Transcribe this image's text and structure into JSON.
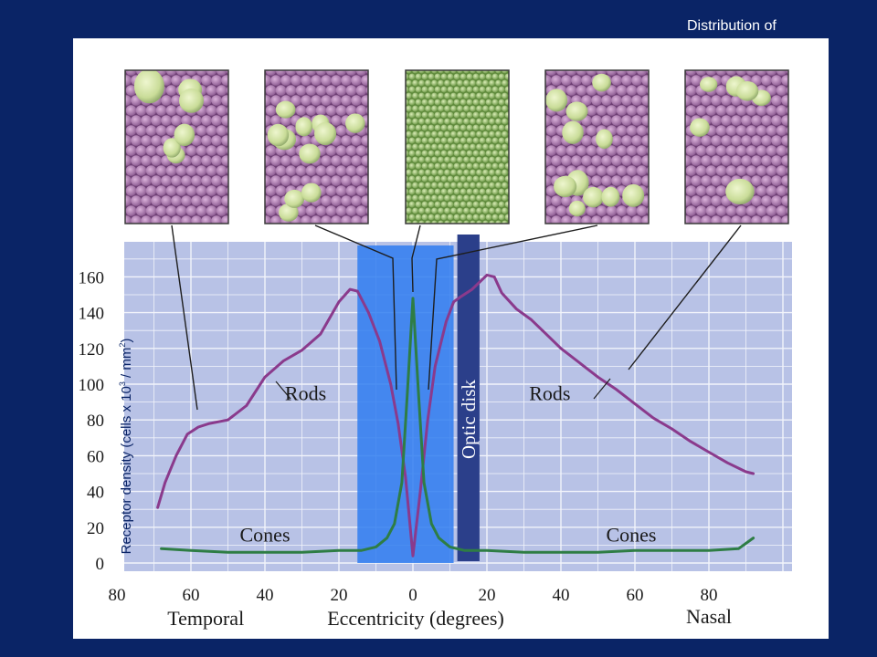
{
  "slide": {
    "title": "Distribution of",
    "ylabel_main": "Receptor density (cells x 10",
    "ylabel_exp1": "3",
    "ylabel_mid": " / mm",
    "ylabel_exp2": "2",
    "ylabel_end": ")"
  },
  "colors": {
    "background": "#0a2466",
    "plot_bg": "#b8c2e6",
    "grid": "#f2f4fb",
    "rods": "#8a3a8c",
    "cones": "#2e7d44",
    "fovea_band": "#2f7cf0",
    "optic_disk": "#2b3f8a"
  },
  "chart_data": {
    "type": "line",
    "xlabel": "Eccentricity (degrees)",
    "ylabel": "Receptor density (cells x 10³ / mm²)",
    "x_side_labels": {
      "left": "Temporal",
      "right": "Nasal"
    },
    "xticks": [
      80,
      60,
      40,
      20,
      0,
      20,
      40,
      60,
      80
    ],
    "xlim": [
      -80,
      100
    ],
    "yticks": [
      0,
      20,
      40,
      60,
      80,
      100,
      120,
      140,
      160
    ],
    "ylim": [
      0,
      170
    ],
    "grid": true,
    "optic_disk_label": "Optic disk",
    "optic_disk_range": [
      12,
      18
    ],
    "fovea_region": [
      -15,
      11
    ],
    "series": [
      {
        "name": "Rods",
        "label_pos": [
          -29,
          91
        ],
        "label_pos_2": [
          37,
          91
        ],
        "x": [
          -69,
          -67,
          -64,
          -61,
          -58,
          -55,
          -50,
          -45,
          -40,
          -35,
          -30,
          -25,
          -20,
          -17,
          -15,
          -12,
          -9,
          -6,
          -4,
          -2,
          0,
          2,
          4,
          6,
          9,
          11,
          13,
          16,
          20,
          22,
          24,
          28,
          32,
          36,
          40,
          45,
          50,
          55,
          60,
          65,
          70,
          75,
          80,
          85,
          90,
          92
        ],
        "y": [
          31,
          45,
          60,
          72,
          76,
          78,
          80,
          88,
          104,
          113,
          119,
          128,
          146,
          153,
          152,
          140,
          124,
          100,
          78,
          48,
          4,
          40,
          80,
          110,
          135,
          146,
          149,
          153,
          161,
          160,
          151,
          142,
          136,
          128,
          120,
          112,
          104,
          97,
          89,
          81,
          75,
          68,
          62,
          56,
          51,
          50
        ]
      },
      {
        "name": "Cones",
        "label_pos": [
          -40,
          12
        ],
        "label_pos_2": [
          59,
          12
        ],
        "x": [
          -68,
          -60,
          -50,
          -40,
          -30,
          -20,
          -14,
          -10,
          -7,
          -5,
          -3,
          -1.5,
          0,
          1.5,
          3,
          5,
          7,
          10,
          14,
          20,
          30,
          40,
          50,
          60,
          70,
          80,
          88,
          92
        ],
        "y": [
          8,
          7,
          6,
          6,
          6,
          7,
          7,
          9,
          14,
          22,
          45,
          95,
          148,
          95,
          45,
          22,
          14,
          9,
          7,
          7,
          6,
          6,
          6,
          7,
          7,
          7,
          8,
          14
        ]
      }
    ],
    "mosaic_samples": [
      {
        "ecc": -60,
        "kind": "mixed"
      },
      {
        "ecc": -20,
        "kind": "mixed"
      },
      {
        "ecc": 0,
        "kind": "fovea"
      },
      {
        "ecc": 20,
        "kind": "mixed"
      },
      {
        "ecc": 55,
        "kind": "mixed"
      }
    ]
  }
}
